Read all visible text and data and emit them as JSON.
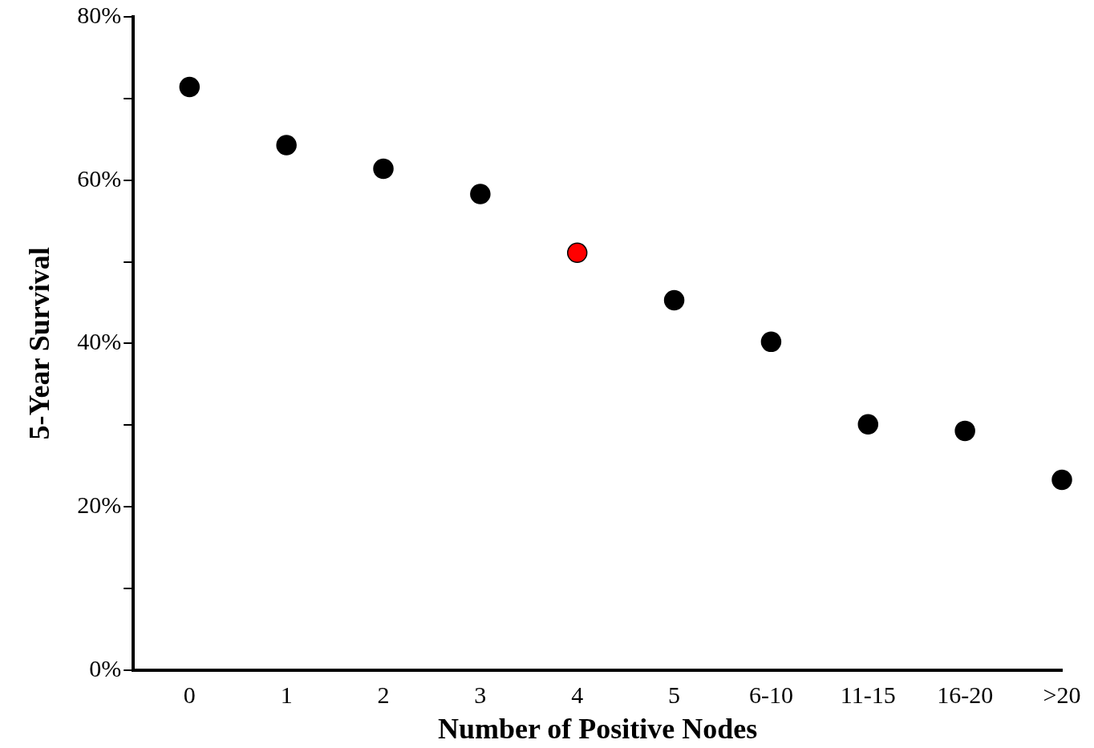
{
  "chart_data": {
    "type": "scatter",
    "xlabel": "Number of Positive Nodes",
    "ylabel": "5-Year Survival",
    "categories": [
      "0",
      "1",
      "2",
      "3",
      "4",
      "5",
      "6-10",
      "11-15",
      "16-20",
      ">20"
    ],
    "values": [
      71.4,
      64.3,
      61.4,
      58.3,
      51.1,
      45.3,
      40.2,
      30.1,
      29.3,
      23.3
    ],
    "colors": [
      "#000000",
      "#000000",
      "#000000",
      "#000000",
      "#ff0000",
      "#000000",
      "#000000",
      "#000000",
      "#000000",
      "#000000"
    ],
    "ylim": [
      0,
      80
    ],
    "yticks": [
      {
        "value": 0,
        "label": "0%"
      },
      {
        "value": 10,
        "label": null
      },
      {
        "value": 20,
        "label": "20%"
      },
      {
        "value": 30,
        "label": null
      },
      {
        "value": 40,
        "label": "40%"
      },
      {
        "value": 50,
        "label": null
      },
      {
        "value": 60,
        "label": "60%"
      },
      {
        "value": 70,
        "label": null
      },
      {
        "value": 80,
        "label": "80%"
      }
    ],
    "marker": "circle",
    "grid": false,
    "legend": false
  }
}
